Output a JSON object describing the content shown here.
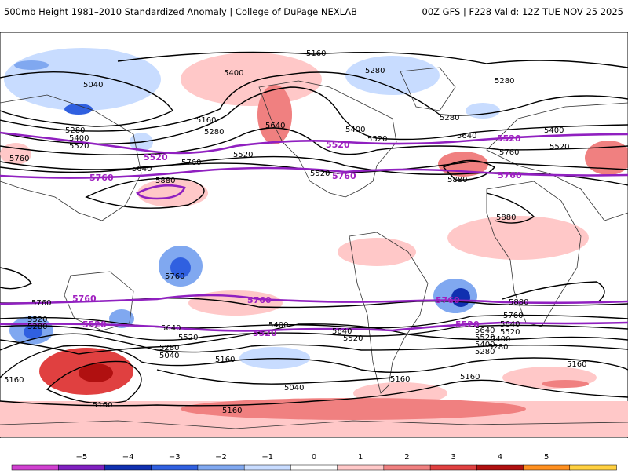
{
  "header": {
    "left_title": "500mb Height 1981–2010 Standardized Anomaly | College of DuPage NEXLAB",
    "right_title": "00Z GFS | F228 Valid: 12Z TUE NOV 25 2025"
  },
  "map": {
    "black_contour_labels": {
      "c5160_n": "5160",
      "c5400_n1": "5400",
      "c5280_n1": "5280",
      "c5040_n1": "5040",
      "c5280_n2": "5280",
      "c5160_n2": "5160",
      "c5280_n3": "5280",
      "c5520_n1": "5520",
      "c5400_n2": "5400",
      "c5520_n2": "5520",
      "c5280_n4": "5280",
      "c5400_n3": "5400",
      "c5520_n3": "5520",
      "c5640_n1": "5640",
      "c5640_n2": "5640",
      "c5760_n1": "5760",
      "c5760_n2": "5760",
      "c5880_n1": "5880",
      "c5280_n5": "5280",
      "c5520_n4": "5520",
      "c5640_n3": "5640",
      "c5760_n3": "5760",
      "c5400_n4": "5400",
      "c5520_n5": "5520",
      "c5880_n2": "5880",
      "c5880_n3": "5880",
      "c5760_s1": "5760",
      "c5760_s2": "5760",
      "c5880_s1": "5880",
      "c5520_s1": "5520",
      "c5280_s1": "5280",
      "c5640_s1": "5640",
      "c5520_s2": "5520",
      "c5280_s2": "5280",
      "c5040_s1": "5040",
      "c5160_s1": "5160",
      "c5400_s1": "5400",
      "c5040_s2": "5040",
      "c5160_s2": "5160",
      "c5160_s3": "5160",
      "c5160_s4": "5160",
      "c5640_s2": "5640",
      "c5520_s3": "5520",
      "c5640_s3": "5640",
      "c5520_s4": "5520",
      "c5400_s2": "5400",
      "c5280_s3": "5280",
      "c5160_s5": "5160",
      "c5760_s3": "5760",
      "c5640_s4": "5640",
      "c5520_s5": "5520",
      "c5400_s3": "5400",
      "c5280_s4": "5280",
      "c5160_s6": "5160",
      "c5160_s7": "5160"
    },
    "purple_contour_labels": {
      "p5520_n1": "5520",
      "p5520_n2": "5520",
      "p5520_n3": "5520",
      "p5760_n1": "5760",
      "p5760_n2": "5760",
      "p5760_n3": "5760",
      "p5760_s1": "5760",
      "p5760_s2": "5760",
      "p5760_s3": "5760",
      "p5520_s1": "5520",
      "p5520_s2": "5520",
      "p5520_s3": "5520"
    }
  },
  "legend": {
    "ticks": [
      "−5",
      "−4",
      "−3",
      "−2",
      "−1",
      "0",
      "1",
      "2",
      "3",
      "4",
      "5"
    ],
    "colors": [
      "#d040d0",
      "#8020c0",
      "#1030b0",
      "#3060e0",
      "#80a8f0",
      "#c8dcff",
      "#ffffff",
      "#ffc8c8",
      "#f08080",
      "#e04040",
      "#b01010",
      "#ff9020",
      "#ffd040"
    ]
  }
}
